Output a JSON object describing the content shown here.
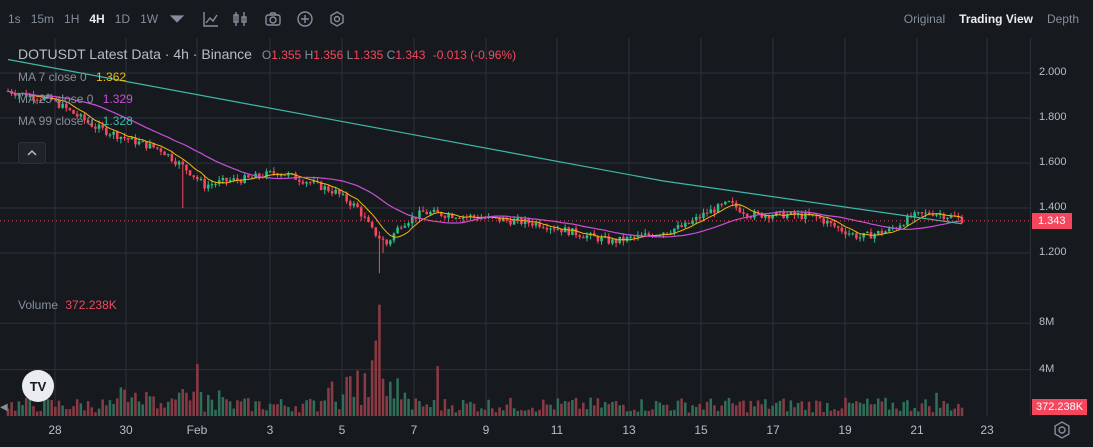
{
  "toolbar": {
    "timeframes": [
      "1s",
      "15m",
      "1H",
      "4H",
      "1D",
      "1W"
    ],
    "active_timeframe": "4H",
    "views": [
      "Original",
      "Trading View",
      "Depth"
    ],
    "active_view": "Trading View"
  },
  "legend": {
    "symbol": "DOTUSDT Latest Data · 4h · Binance",
    "open_label": "O",
    "open": "1.355",
    "high_label": "H",
    "high": "1.356",
    "low_label": "L",
    "low": "1.335",
    "close_label": "C",
    "close": "1.343",
    "change": "-0.013 (-0.96%)",
    "ma7_label": "MA 7 close 0",
    "ma7_value": "1.362",
    "ma25_label": "MA 25 close 0",
    "ma25_value": "1.329",
    "ma99_label": "MA 99 close 0",
    "ma99_value": "1.328"
  },
  "volume": {
    "label": "Volume",
    "value": "372.238K"
  },
  "price_axis": {
    "ticks": [
      "2.000",
      "1.800",
      "1.600",
      "1.400",
      "1.200"
    ],
    "current_price": "1.343"
  },
  "volume_axis": {
    "ticks": [
      "8M",
      "4M"
    ],
    "current": "372.238K"
  },
  "time_axis": [
    "28",
    "30",
    "Feb",
    "3",
    "5",
    "7",
    "9",
    "11",
    "13",
    "15",
    "17",
    "19",
    "21",
    "23"
  ],
  "logo_text": "TV",
  "colors": {
    "up": "#2ebd85",
    "down": "#f6465d",
    "ma7": "#f0b90b",
    "ma25": "#c84fd8",
    "ma99": "#3fb8a8",
    "background": "#161a1e",
    "grid": "#2b3139"
  },
  "icons": [
    "dropdown-icon",
    "indicator-icon",
    "candlestick-icon",
    "camera-icon",
    "plus-circle-icon",
    "settings-hex-icon",
    "gear-icon"
  ],
  "chart_data": {
    "type": "candlestick",
    "price_range": [
      1.08,
      2.12
    ],
    "volume_range_millions": [
      0,
      10
    ],
    "anchors": [
      [
        0,
        1.92,
        1.92
      ],
      [
        12,
        1.88,
        1.98
      ],
      [
        24,
        1.76,
        1.86
      ],
      [
        34,
        1.7,
        1.76
      ],
      [
        42,
        1.66,
        1.7
      ],
      [
        50,
        1.56,
        1.62
      ],
      [
        54,
        1.5,
        1.58
      ],
      [
        60,
        1.52,
        1.56
      ],
      [
        66,
        1.53,
        1.54
      ],
      [
        74,
        1.56,
        1.52
      ],
      [
        82,
        1.52,
        1.5
      ],
      [
        90,
        1.47,
        1.47
      ],
      [
        96,
        1.4,
        1.44
      ],
      [
        100,
        1.3,
        1.42
      ],
      [
        104,
        1.24,
        1.4
      ],
      [
        108,
        1.33,
        1.39
      ],
      [
        114,
        1.38,
        1.38
      ],
      [
        122,
        1.37,
        1.37
      ],
      [
        134,
        1.35,
        1.36
      ],
      [
        146,
        1.33,
        1.34
      ],
      [
        158,
        1.28,
        1.32
      ],
      [
        166,
        1.25,
        1.3
      ],
      [
        176,
        1.28,
        1.29
      ],
      [
        186,
        1.32,
        1.3
      ],
      [
        192,
        1.38,
        1.32
      ],
      [
        198,
        1.42,
        1.34
      ],
      [
        204,
        1.37,
        1.34
      ],
      [
        214,
        1.37,
        1.34
      ],
      [
        222,
        1.36,
        1.34
      ],
      [
        228,
        1.31,
        1.33
      ],
      [
        234,
        1.27,
        1.32
      ],
      [
        242,
        1.3,
        1.33
      ],
      [
        248,
        1.36,
        1.33
      ],
      [
        254,
        1.38,
        1.33
      ],
      [
        262,
        1.35,
        1.33
      ]
    ],
    "ma99": [
      [
        0,
        2.06
      ],
      [
        90,
        1.79
      ],
      [
        180,
        1.52
      ],
      [
        262,
        1.33
      ]
    ],
    "volume_spikes": {
      "52": 4.5,
      "100": 4.8,
      "101": 6.5,
      "102": 9.6,
      "118": 4.3,
      "255": 2.0
    }
  }
}
